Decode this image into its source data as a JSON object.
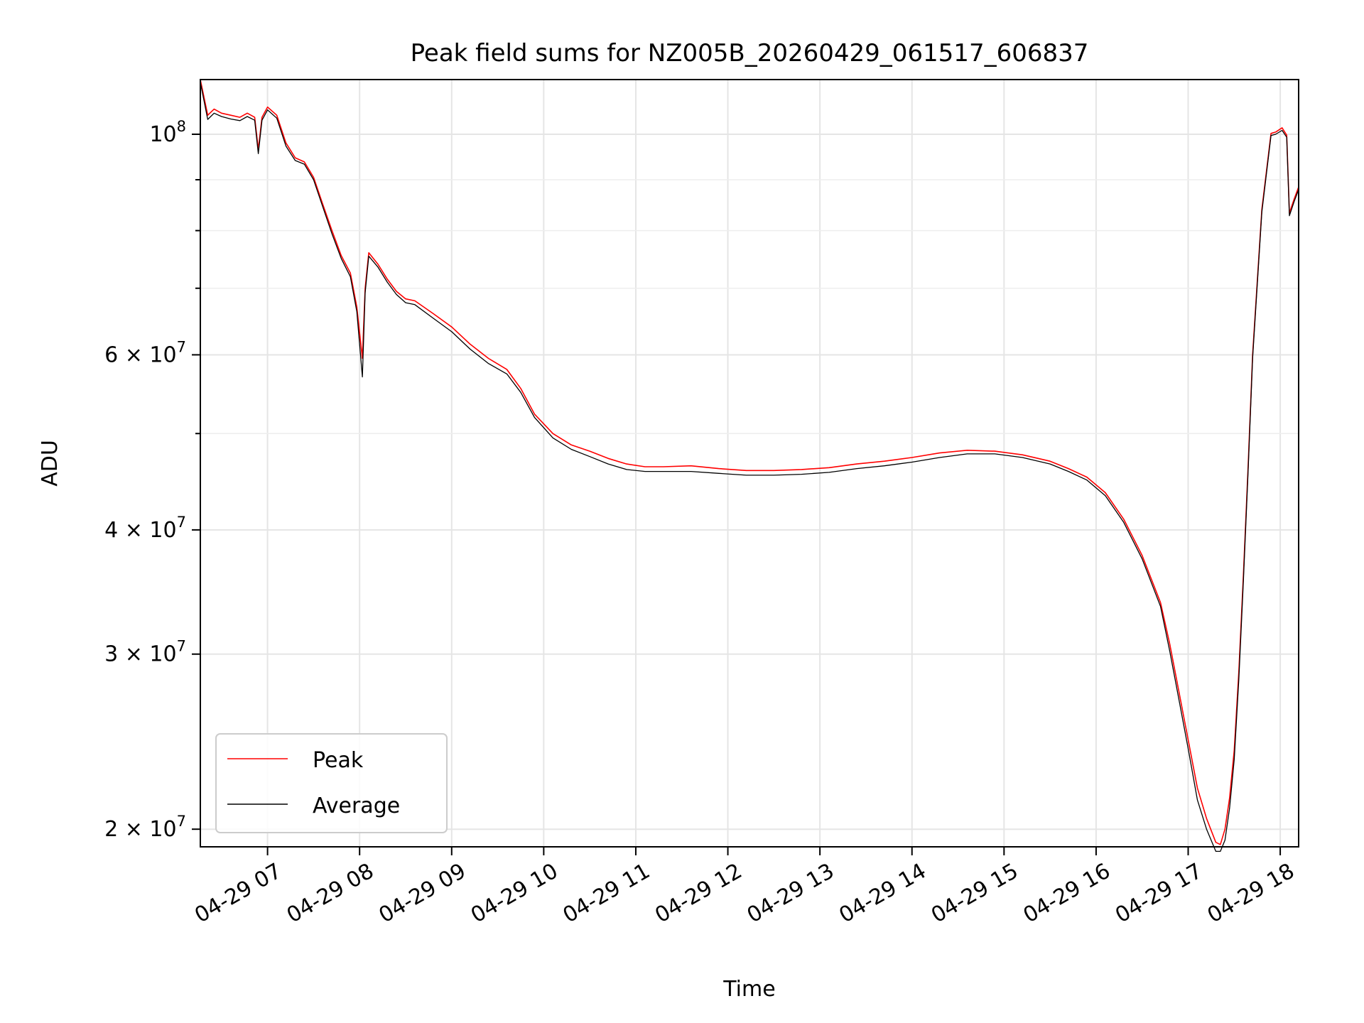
{
  "chart_data": {
    "type": "line",
    "title": "Peak field sums for NZ005B_20260429_061517_606837",
    "xlabel": "Time",
    "ylabel": "ADU",
    "yscale": "log",
    "xlim": [
      6.27,
      18.2
    ],
    "ylim": [
      19200000,
      113500000
    ],
    "grid": true,
    "legend_position": "lower-left",
    "x_ticks": [
      {
        "value": 7,
        "label": "04-29 07"
      },
      {
        "value": 8,
        "label": "04-29 08"
      },
      {
        "value": 9,
        "label": "04-29 09"
      },
      {
        "value": 10,
        "label": "04-29 10"
      },
      {
        "value": 11,
        "label": "04-29 11"
      },
      {
        "value": 12,
        "label": "04-29 12"
      },
      {
        "value": 13,
        "label": "04-29 13"
      },
      {
        "value": 14,
        "label": "04-29 14"
      },
      {
        "value": 15,
        "label": "04-29 15"
      },
      {
        "value": 16,
        "label": "04-29 16"
      },
      {
        "value": 17,
        "label": "04-29 17"
      },
      {
        "value": 18,
        "label": "04-29 18"
      }
    ],
    "y_ticks": [
      {
        "value": 20000000,
        "mantissa": "2 × 10",
        "exp": "7"
      },
      {
        "value": 30000000,
        "mantissa": "3 × 10",
        "exp": "7"
      },
      {
        "value": 40000000,
        "mantissa": "4 × 10",
        "exp": "7"
      },
      {
        "value": 60000000,
        "mantissa": "6 × 10",
        "exp": "7"
      },
      {
        "value": 100000000,
        "mantissa": "10",
        "exp": "8"
      }
    ],
    "y_minor_ticks": [
      50000000,
      70000000,
      80000000,
      90000000
    ],
    "series": [
      {
        "name": "Peak",
        "color": "#ff0000",
        "x": [
          6.27,
          6.35,
          6.42,
          6.5,
          6.6,
          6.7,
          6.78,
          6.86,
          6.9,
          6.94,
          7.0,
          7.1,
          7.2,
          7.3,
          7.4,
          7.5,
          7.6,
          7.7,
          7.8,
          7.9,
          7.97,
          8.03,
          8.06,
          8.1,
          8.2,
          8.3,
          8.4,
          8.5,
          8.6,
          8.8,
          9.0,
          9.2,
          9.4,
          9.6,
          9.75,
          9.9,
          10.1,
          10.3,
          10.5,
          10.7,
          10.9,
          11.1,
          11.3,
          11.6,
          11.9,
          12.2,
          12.5,
          12.8,
          13.1,
          13.4,
          13.7,
          14.0,
          14.3,
          14.6,
          14.9,
          15.2,
          15.5,
          15.7,
          15.9,
          16.1,
          16.3,
          16.5,
          16.7,
          16.8,
          16.9,
          17.0,
          17.1,
          17.2,
          17.3,
          17.35,
          17.4,
          17.45,
          17.5,
          17.55,
          17.6,
          17.65,
          17.7,
          17.8,
          17.9,
          17.95,
          18.02,
          18.07,
          18.1,
          18.15,
          18.2
        ],
        "values": [
          113500000,
          104500000,
          106000000,
          105000000,
          104500000,
          104000000,
          105000000,
          104000000,
          96500000,
          104000000,
          106500000,
          104500000,
          98000000,
          94700000,
          93800000,
          90500000,
          85000000,
          80000000,
          75500000,
          72500000,
          67000000,
          59500000,
          70000000,
          76000000,
          74000000,
          71500000,
          69500000,
          68300000,
          68000000,
          66000000,
          64000000,
          61500000,
          59500000,
          58000000,
          55500000,
          52300000,
          50000000,
          48700000,
          48000000,
          47200000,
          46600000,
          46300000,
          46300000,
          46400000,
          46100000,
          45900000,
          45900000,
          46000000,
          46200000,
          46600000,
          46900000,
          47300000,
          47800000,
          48100000,
          48000000,
          47600000,
          46900000,
          46100000,
          45200000,
          43600000,
          41000000,
          37700000,
          33800000,
          30700000,
          27500000,
          24600000,
          22000000,
          20500000,
          19400000,
          19300000,
          20000000,
          21500000,
          24000000,
          28800000,
          36000000,
          46000000,
          60000000,
          84000000,
          100200000,
          100500000,
          101500000,
          99800000,
          83300000,
          86000000,
          88500000
        ]
      },
      {
        "name": "Average",
        "color": "#000000",
        "x": [
          6.27,
          6.35,
          6.42,
          6.5,
          6.6,
          6.7,
          6.78,
          6.86,
          6.9,
          6.94,
          7.0,
          7.1,
          7.2,
          7.3,
          7.4,
          7.5,
          7.6,
          7.7,
          7.8,
          7.9,
          7.97,
          8.03,
          8.06,
          8.1,
          8.2,
          8.3,
          8.4,
          8.5,
          8.6,
          8.8,
          9.0,
          9.2,
          9.4,
          9.6,
          9.75,
          9.9,
          10.1,
          10.3,
          10.5,
          10.7,
          10.9,
          11.1,
          11.3,
          11.6,
          11.9,
          12.2,
          12.5,
          12.8,
          13.1,
          13.4,
          13.7,
          14.0,
          14.3,
          14.6,
          14.9,
          15.2,
          15.5,
          15.7,
          15.9,
          16.1,
          16.3,
          16.5,
          16.7,
          16.8,
          16.9,
          17.0,
          17.1,
          17.2,
          17.3,
          17.35,
          17.4,
          17.45,
          17.5,
          17.55,
          17.6,
          17.65,
          17.7,
          17.8,
          17.9,
          17.95,
          18.02,
          18.07,
          18.1,
          18.15,
          18.2
        ],
        "values": [
          112800000,
          103500000,
          105000000,
          104200000,
          103600000,
          103200000,
          104200000,
          103300000,
          95600000,
          103300000,
          105800000,
          103800000,
          97300000,
          94100000,
          93300000,
          90000000,
          84500000,
          79400000,
          75000000,
          71900000,
          66300000,
          57000000,
          69300000,
          75400000,
          73500000,
          71000000,
          69000000,
          67700000,
          67400000,
          65300000,
          63300000,
          60800000,
          58800000,
          57400000,
          55000000,
          51900000,
          49500000,
          48200000,
          47400000,
          46600000,
          46000000,
          45800000,
          45800000,
          45800000,
          45600000,
          45400000,
          45400000,
          45500000,
          45700000,
          46100000,
          46400000,
          46800000,
          47300000,
          47700000,
          47700000,
          47300000,
          46600000,
          45800000,
          44900000,
          43300000,
          40700000,
          37400000,
          33500000,
          30200000,
          27000000,
          24100000,
          21400000,
          20000000,
          19000000,
          19000000,
          19500000,
          21000000,
          23500000,
          28300000,
          35500000,
          45500000,
          59500000,
          83500000,
          99700000,
          100000000,
          100900000,
          99300000,
          82800000,
          85500000,
          88000000
        ]
      }
    ]
  }
}
